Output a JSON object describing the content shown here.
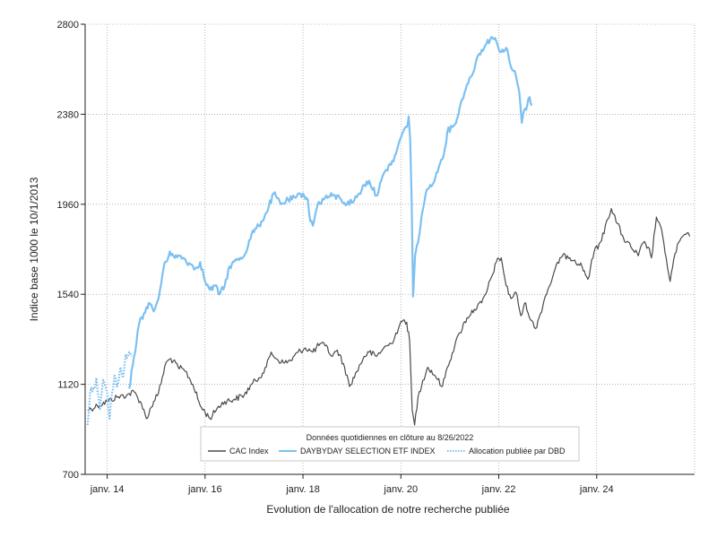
{
  "chart_data": {
    "type": "line",
    "xlabel": "Evolution de l'allocation de notre recherche publiée",
    "ylabel": "Indice base 1000 le 10/1/2013",
    "ylim": [
      700,
      2800
    ],
    "yticks": [
      700,
      1120,
      1540,
      1960,
      2380,
      2800
    ],
    "xlim": [
      2013.55,
      2026.0
    ],
    "xticks": [
      {
        "value": 2014,
        "label": "janv. 14"
      },
      {
        "value": 2016,
        "label": "janv. 16"
      },
      {
        "value": 2018,
        "label": "janv. 18"
      },
      {
        "value": 2020,
        "label": "janv. 20"
      },
      {
        "value": 2022,
        "label": "janv. 22"
      },
      {
        "value": 2024,
        "label": "janv. 24"
      }
    ],
    "grid": true,
    "legend": {
      "title": "Données quotidiennes en clôture au 8/26/2022",
      "placement": "bottom-center"
    },
    "series": [
      {
        "name": "CAC Index",
        "color": "#4a4a4a",
        "style": "solid",
        "points": [
          [
            2013.6,
            1000
          ],
          [
            2013.8,
            1020
          ],
          [
            2014.0,
            1040
          ],
          [
            2014.2,
            1060
          ],
          [
            2014.4,
            1070
          ],
          [
            2014.55,
            1085
          ],
          [
            2014.7,
            1030
          ],
          [
            2014.8,
            960
          ],
          [
            2014.95,
            1040
          ],
          [
            2015.05,
            1080
          ],
          [
            2015.2,
            1220
          ],
          [
            2015.3,
            1240
          ],
          [
            2015.45,
            1200
          ],
          [
            2015.6,
            1180
          ],
          [
            2015.75,
            1120
          ],
          [
            2015.9,
            1020
          ],
          [
            2016.1,
            960
          ],
          [
            2016.25,
            1010
          ],
          [
            2016.4,
            1040
          ],
          [
            2016.6,
            1050
          ],
          [
            2016.8,
            1070
          ],
          [
            2016.95,
            1120
          ],
          [
            2017.1,
            1150
          ],
          [
            2017.25,
            1200
          ],
          [
            2017.35,
            1270
          ],
          [
            2017.45,
            1240
          ],
          [
            2017.6,
            1220
          ],
          [
            2017.75,
            1230
          ],
          [
            2017.9,
            1270
          ],
          [
            2018.05,
            1290
          ],
          [
            2018.2,
            1270
          ],
          [
            2018.35,
            1310
          ],
          [
            2018.45,
            1300
          ],
          [
            2018.6,
            1250
          ],
          [
            2018.7,
            1280
          ],
          [
            2018.85,
            1200
          ],
          [
            2018.95,
            1110
          ],
          [
            2019.1,
            1180
          ],
          [
            2019.25,
            1250
          ],
          [
            2019.35,
            1270
          ],
          [
            2019.5,
            1250
          ],
          [
            2019.65,
            1290
          ],
          [
            2019.8,
            1310
          ],
          [
            2019.95,
            1380
          ],
          [
            2020.05,
            1420
          ],
          [
            2020.12,
            1410
          ],
          [
            2020.18,
            1320
          ],
          [
            2020.23,
            1000
          ],
          [
            2020.28,
            930
          ],
          [
            2020.35,
            1060
          ],
          [
            2020.45,
            1140
          ],
          [
            2020.55,
            1200
          ],
          [
            2020.7,
            1160
          ],
          [
            2020.85,
            1110
          ],
          [
            2020.95,
            1200
          ],
          [
            2021.1,
            1300
          ],
          [
            2021.2,
            1360
          ],
          [
            2021.35,
            1430
          ],
          [
            2021.5,
            1470
          ],
          [
            2021.65,
            1500
          ],
          [
            2021.75,
            1550
          ],
          [
            2021.85,
            1620
          ],
          [
            2021.95,
            1690
          ],
          [
            2022.05,
            1710
          ],
          [
            2022.15,
            1580
          ],
          [
            2022.25,
            1520
          ],
          [
            2022.35,
            1550
          ],
          [
            2022.45,
            1440
          ],
          [
            2022.55,
            1500
          ],
          [
            2022.65,
            1420
          ],
          [
            2022.75,
            1380
          ],
          [
            2022.85,
            1450
          ],
          [
            2022.95,
            1530
          ],
          [
            2023.1,
            1620
          ],
          [
            2023.25,
            1710
          ],
          [
            2023.4,
            1720
          ],
          [
            2023.55,
            1700
          ],
          [
            2023.7,
            1670
          ],
          [
            2023.82,
            1610
          ],
          [
            2023.95,
            1740
          ],
          [
            2024.1,
            1790
          ],
          [
            2024.2,
            1880
          ],
          [
            2024.3,
            1940
          ],
          [
            2024.42,
            1870
          ],
          [
            2024.55,
            1800
          ],
          [
            2024.7,
            1760
          ],
          [
            2024.85,
            1720
          ],
          [
            2024.95,
            1780
          ],
          [
            2025.05,
            1760
          ],
          [
            2025.12,
            1710
          ],
          [
            2025.22,
            1900
          ],
          [
            2025.3,
            1860
          ],
          [
            2025.42,
            1710
          ],
          [
            2025.5,
            1600
          ],
          [
            2025.6,
            1730
          ],
          [
            2025.7,
            1790
          ],
          [
            2025.8,
            1820
          ],
          [
            2025.9,
            1810
          ]
        ]
      },
      {
        "name": "DAYBYDAY SELECTION ETF INDEX",
        "color": "#7cc0f2",
        "style": "solid",
        "points": [
          [
            2014.45,
            1100
          ],
          [
            2014.55,
            1250
          ],
          [
            2014.65,
            1400
          ],
          [
            2014.75,
            1450
          ],
          [
            2014.85,
            1500
          ],
          [
            2014.95,
            1460
          ],
          [
            2015.05,
            1520
          ],
          [
            2015.15,
            1660
          ],
          [
            2015.28,
            1740
          ],
          [
            2015.38,
            1710
          ],
          [
            2015.5,
            1720
          ],
          [
            2015.6,
            1700
          ],
          [
            2015.7,
            1680
          ],
          [
            2015.8,
            1660
          ],
          [
            2015.9,
            1690
          ],
          [
            2016.0,
            1600
          ],
          [
            2016.1,
            1560
          ],
          [
            2016.2,
            1580
          ],
          [
            2016.3,
            1540
          ],
          [
            2016.4,
            1580
          ],
          [
            2016.5,
            1670
          ],
          [
            2016.65,
            1700
          ],
          [
            2016.8,
            1720
          ],
          [
            2016.95,
            1820
          ],
          [
            2017.1,
            1860
          ],
          [
            2017.25,
            1920
          ],
          [
            2017.4,
            2010
          ],
          [
            2017.55,
            1960
          ],
          [
            2017.7,
            1980
          ],
          [
            2017.85,
            1990
          ],
          [
            2018.0,
            2010
          ],
          [
            2018.1,
            1980
          ],
          [
            2018.15,
            1880
          ],
          [
            2018.2,
            1860
          ],
          [
            2018.3,
            1960
          ],
          [
            2018.45,
            1990
          ],
          [
            2018.6,
            2000
          ],
          [
            2018.75,
            1990
          ],
          [
            2018.9,
            1960
          ],
          [
            2019.05,
            1980
          ],
          [
            2019.15,
            2010
          ],
          [
            2019.25,
            2050
          ],
          [
            2019.35,
            2070
          ],
          [
            2019.5,
            2000
          ],
          [
            2019.6,
            2070
          ],
          [
            2019.75,
            2140
          ],
          [
            2019.85,
            2160
          ],
          [
            2019.95,
            2240
          ],
          [
            2020.05,
            2300
          ],
          [
            2020.12,
            2320
          ],
          [
            2020.16,
            2370
          ],
          [
            2020.19,
            2260
          ],
          [
            2020.22,
            1980
          ],
          [
            2020.25,
            1530
          ],
          [
            2020.29,
            1720
          ],
          [
            2020.35,
            1780
          ],
          [
            2020.42,
            1900
          ],
          [
            2020.5,
            2000
          ],
          [
            2020.6,
            2050
          ],
          [
            2020.7,
            2080
          ],
          [
            2020.8,
            2150
          ],
          [
            2020.9,
            2220
          ],
          [
            2020.95,
            2300
          ],
          [
            2021.05,
            2320
          ],
          [
            2021.15,
            2360
          ],
          [
            2021.25,
            2450
          ],
          [
            2021.35,
            2520
          ],
          [
            2021.45,
            2560
          ],
          [
            2021.55,
            2640
          ],
          [
            2021.65,
            2680
          ],
          [
            2021.75,
            2710
          ],
          [
            2021.85,
            2740
          ],
          [
            2021.95,
            2720
          ],
          [
            2022.05,
            2670
          ],
          [
            2022.15,
            2690
          ],
          [
            2022.25,
            2600
          ],
          [
            2022.35,
            2560
          ],
          [
            2022.42,
            2480
          ],
          [
            2022.47,
            2340
          ],
          [
            2022.52,
            2400
          ],
          [
            2022.58,
            2420
          ],
          [
            2022.63,
            2460
          ],
          [
            2022.67,
            2420
          ]
        ]
      },
      {
        "name": "Allocation publiée par DBD",
        "color": "#7cc0f2",
        "style": "dotted",
        "points": [
          [
            2013.6,
            930
          ],
          [
            2013.65,
            1080
          ],
          [
            2013.72,
            1100
          ],
          [
            2013.78,
            1150
          ],
          [
            2013.85,
            1000
          ],
          [
            2013.92,
            1140
          ],
          [
            2014.0,
            1080
          ],
          [
            2014.05,
            960
          ],
          [
            2014.1,
            1080
          ],
          [
            2014.15,
            1160
          ],
          [
            2014.2,
            1110
          ],
          [
            2014.27,
            1200
          ],
          [
            2014.32,
            1150
          ],
          [
            2014.38,
            1260
          ],
          [
            2014.45,
            1270
          ],
          [
            2014.5,
            1250
          ]
        ]
      }
    ]
  }
}
